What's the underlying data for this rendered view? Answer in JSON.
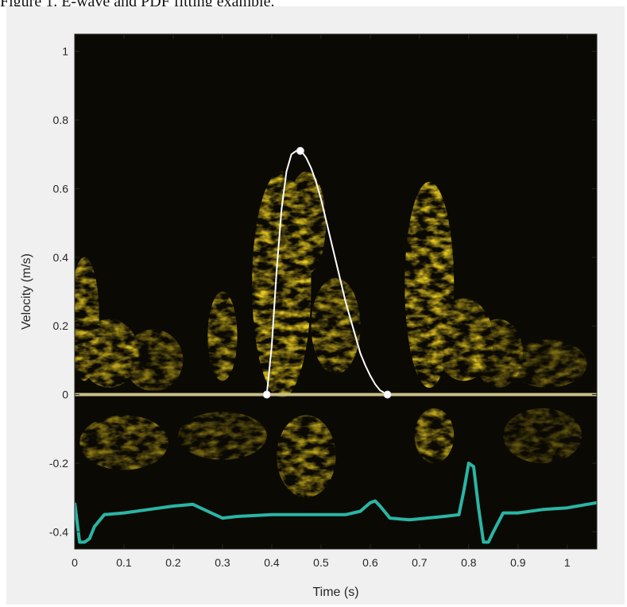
{
  "caption": "Figure 1. E-wave and PDF fitting example.",
  "colors": {
    "doppler": "#e6c820",
    "baseline": "#c8c08a",
    "pdf_fit": "#ffffff",
    "ecg": "#2ab5a5"
  },
  "chart_data": {
    "type": "line",
    "title": "",
    "xlabel": "Time (s)",
    "ylabel": "Velocity (m/s)",
    "xlim": [
      0,
      1.06
    ],
    "ylim": [
      -0.45,
      1.05
    ],
    "xticks": [
      "0",
      "0.1",
      "0.2",
      "0.3",
      "0.4",
      "0.5",
      "0.6",
      "0.7",
      "0.8",
      "0.9",
      "1"
    ],
    "yticks": [
      "-0.4",
      "-0.2",
      "0",
      "0.2",
      "0.4",
      "0.6",
      "0.8",
      "1"
    ],
    "grid": false,
    "series": [
      {
        "x": [
          0.39,
          0.4,
          0.41,
          0.42,
          0.43,
          0.44,
          0.45,
          0.46,
          0.47,
          0.48,
          0.49,
          0.5,
          0.51,
          0.52,
          0.53,
          0.54,
          0.55,
          0.56,
          0.57,
          0.58,
          0.59,
          0.6,
          0.61,
          0.62,
          0.635
        ],
        "y": [
          0.0,
          0.14,
          0.36,
          0.54,
          0.65,
          0.7,
          0.71,
          0.71,
          0.69,
          0.66,
          0.62,
          0.57,
          0.51,
          0.45,
          0.39,
          0.33,
          0.27,
          0.22,
          0.17,
          0.12,
          0.085,
          0.055,
          0.03,
          0.012,
          0.0
        ]
      },
      {
        "x": [
          0.0,
          0.01,
          0.02,
          0.03,
          0.04,
          0.06,
          0.1,
          0.15,
          0.2,
          0.24,
          0.27,
          0.3,
          0.33,
          0.4,
          0.5,
          0.55,
          0.58,
          0.6,
          0.61,
          0.62,
          0.64,
          0.68,
          0.75,
          0.78,
          0.79,
          0.8,
          0.81,
          0.82,
          0.83,
          0.84,
          0.85,
          0.87,
          0.9,
          0.95,
          1.0,
          1.06
        ],
        "y": [
          -0.315,
          -0.43,
          -0.43,
          -0.42,
          -0.385,
          -0.35,
          -0.345,
          -0.335,
          -0.325,
          -0.32,
          -0.34,
          -0.36,
          -0.355,
          -0.35,
          -0.35,
          -0.35,
          -0.34,
          -0.315,
          -0.31,
          -0.325,
          -0.36,
          -0.365,
          -0.355,
          -0.35,
          -0.28,
          -0.2,
          -0.21,
          -0.33,
          -0.43,
          -0.43,
          -0.4,
          -0.345,
          -0.345,
          -0.335,
          -0.33,
          -0.315
        ]
      }
    ],
    "markers": [
      {
        "x": 0.39,
        "y": 0.0
      },
      {
        "x": 0.458,
        "y": 0.71
      },
      {
        "x": 0.635,
        "y": 0.0
      }
    ]
  }
}
